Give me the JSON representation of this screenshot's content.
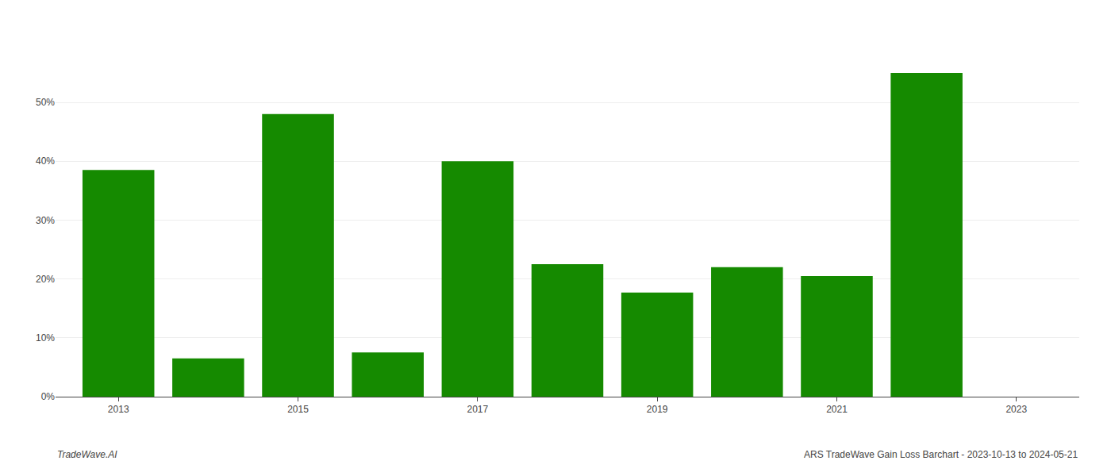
{
  "chart_data": {
    "type": "bar",
    "x": [
      2013,
      2014,
      2015,
      2016,
      2017,
      2018,
      2019,
      2020,
      2021,
      2022
    ],
    "values": [
      0.385,
      0.065,
      0.48,
      0.075,
      0.4,
      0.225,
      0.177,
      0.22,
      0.205,
      0.55
    ],
    "color": "#158a00",
    "xlim": [
      2012.3,
      2023.7
    ],
    "xticks": [
      2013,
      2015,
      2017,
      2019,
      2021,
      2023
    ],
    "ylim": [
      0,
      0.62
    ],
    "yticks": [
      {
        "value": 0.0,
        "label": "0%"
      },
      {
        "value": 0.1,
        "label": "10%"
      },
      {
        "value": 0.2,
        "label": "20%"
      },
      {
        "value": 0.3,
        "label": "30%"
      },
      {
        "value": 0.4,
        "label": "40%"
      },
      {
        "value": 0.5,
        "label": "50%"
      }
    ],
    "grid": true,
    "annotations": [
      "TradeWave.AI",
      "ARS TradeWave Gain Loss Barchart - 2023-10-13 to 2024-05-21"
    ]
  }
}
